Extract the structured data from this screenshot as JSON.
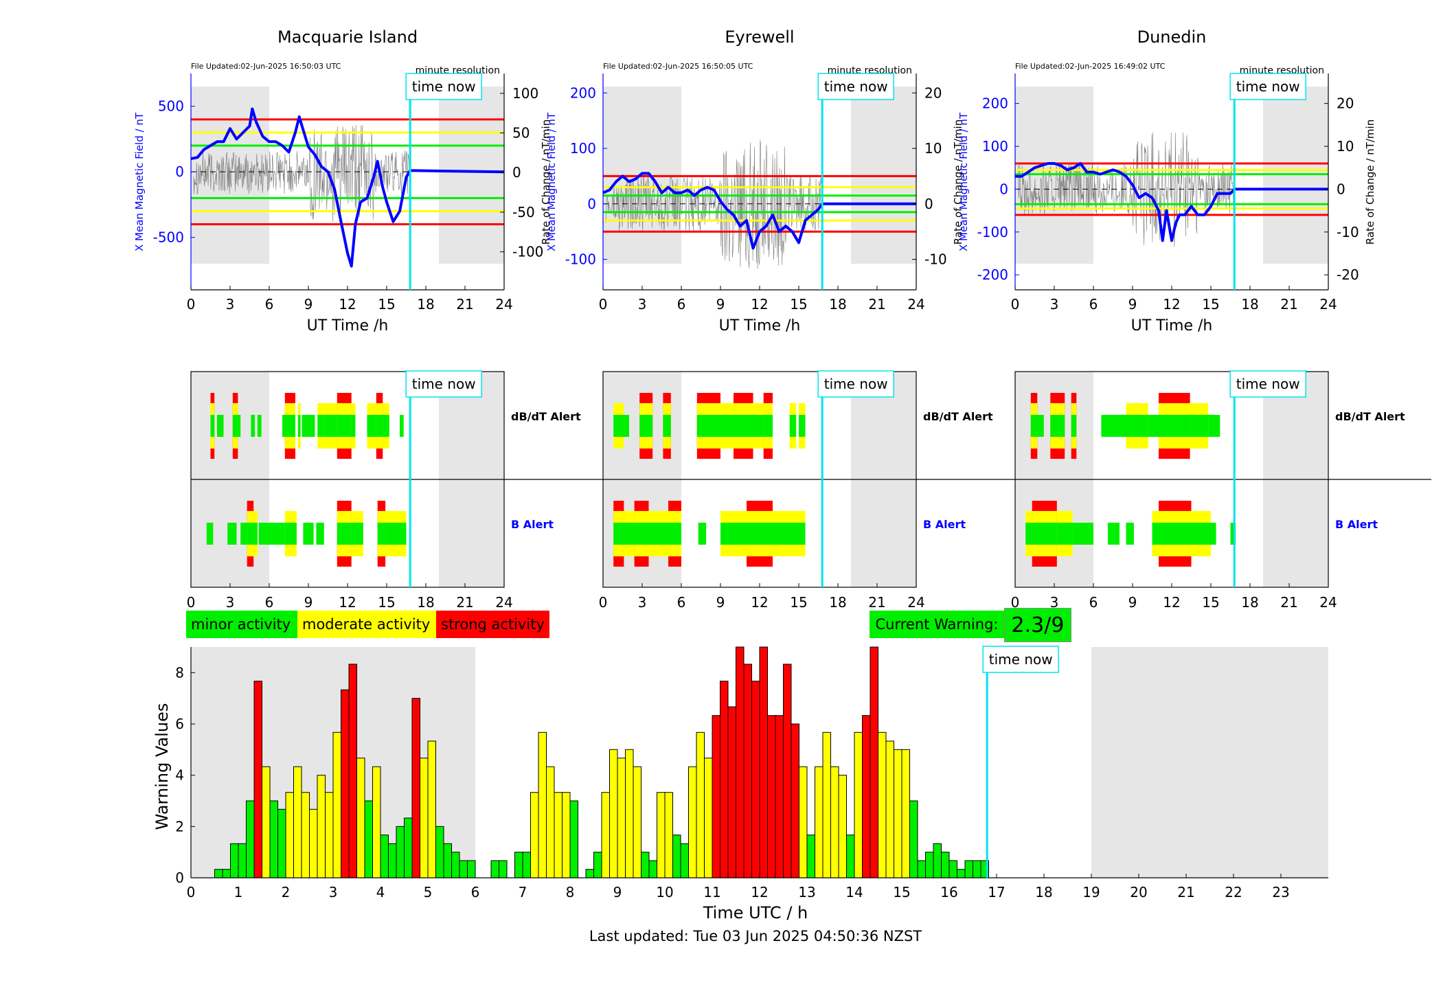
{
  "stations": [
    {
      "name": "Macquarie Island",
      "file_updated": "File Updated:02-Jun-2025 16:50:03 UTC",
      "resolution": "minute resolution",
      "left_ylabel": "X Mean Magnetic Field / nT",
      "left_ticks": [
        -500,
        0,
        500
      ],
      "left_ylim": [
        -900,
        750
      ],
      "right_ylabel": "Rate of Change / nT/min",
      "right_ticks": [
        -100,
        -50,
        0,
        50,
        100
      ],
      "right_ylim": [
        -148,
        125
      ],
      "thresholds_left": {
        "green": 200,
        "yellow": 300,
        "red": 400
      },
      "field_trace": [
        [
          0,
          100
        ],
        [
          0.5,
          110
        ],
        [
          1,
          170
        ],
        [
          1.5,
          200
        ],
        [
          2,
          230
        ],
        [
          2.5,
          230
        ],
        [
          3,
          330
        ],
        [
          3.5,
          250
        ],
        [
          4,
          300
        ],
        [
          4.5,
          350
        ],
        [
          4.7,
          480
        ],
        [
          5,
          380
        ],
        [
          5.5,
          270
        ],
        [
          6,
          230
        ],
        [
          6.5,
          230
        ],
        [
          7,
          200
        ],
        [
          7.5,
          150
        ],
        [
          8,
          300
        ],
        [
          8.3,
          420
        ],
        [
          8.6,
          320
        ],
        [
          9,
          190
        ],
        [
          9.5,
          130
        ],
        [
          10,
          40
        ],
        [
          10.5,
          0
        ],
        [
          11,
          -130
        ],
        [
          11.5,
          -380
        ],
        [
          12,
          -620
        ],
        [
          12.3,
          -720
        ],
        [
          12.6,
          -400
        ],
        [
          13,
          -230
        ],
        [
          13.5,
          -200
        ],
        [
          14,
          -40
        ],
        [
          14.3,
          80
        ],
        [
          14.7,
          -120
        ],
        [
          15,
          -230
        ],
        [
          15.5,
          -380
        ],
        [
          16,
          -300
        ],
        [
          16.5,
          -40
        ],
        [
          16.8,
          10
        ],
        [
          24,
          0
        ]
      ],
      "dbdt_bars": [
        [
          1.5,
          1.8,
          3
        ],
        [
          2.0,
          2.5,
          1
        ],
        [
          3.2,
          3.6,
          3
        ],
        [
          3.6,
          3.8,
          1
        ],
        [
          4.6,
          4.9,
          1
        ],
        [
          5.1,
          5.4,
          1
        ],
        [
          7.0,
          7.2,
          1
        ],
        [
          7.2,
          8.0,
          3
        ],
        [
          8.2,
          8.4,
          2
        ],
        [
          8.5,
          9.5,
          1
        ],
        [
          9.7,
          10.2,
          2
        ],
        [
          10.2,
          11.2,
          2
        ],
        [
          11.2,
          12.3,
          3
        ],
        [
          12.3,
          12.6,
          2
        ],
        [
          13.5,
          14.2,
          2
        ],
        [
          14.2,
          14.7,
          3
        ],
        [
          14.7,
          15.2,
          2
        ],
        [
          16.0,
          16.3,
          1
        ]
      ],
      "b_bars": [
        [
          1.2,
          1.7,
          1
        ],
        [
          2.8,
          3.5,
          1
        ],
        [
          3.8,
          4.3,
          1
        ],
        [
          4.3,
          4.8,
          3
        ],
        [
          4.8,
          5.1,
          2
        ],
        [
          5.2,
          7.0,
          1
        ],
        [
          7.0,
          7.2,
          1
        ],
        [
          7.2,
          8.1,
          2
        ],
        [
          8.6,
          9.4,
          1
        ],
        [
          9.6,
          10.2,
          1
        ],
        [
          11.2,
          12.3,
          3
        ],
        [
          12.3,
          13.2,
          2
        ],
        [
          14.3,
          14.9,
          3
        ],
        [
          14.9,
          16.5,
          2
        ]
      ]
    },
    {
      "name": "Eyrewell",
      "file_updated": "File Updated:02-Jun-2025 16:50:05 UTC",
      "resolution": "minute resolution",
      "left_ylabel": "X Mean Magnetic Field / nT",
      "left_ticks": [
        -100,
        0,
        100,
        200
      ],
      "left_ylim": [
        -155,
        235
      ],
      "right_ylabel": "Rate of Change / nT/min",
      "right_ticks": [
        -10,
        0,
        10,
        20
      ],
      "right_ylim": [
        -15.5,
        23.5
      ],
      "thresholds_left": {
        "green": 15,
        "yellow": 30,
        "red": 50
      },
      "field_trace": [
        [
          0,
          20
        ],
        [
          0.5,
          25
        ],
        [
          1,
          40
        ],
        [
          1.5,
          50
        ],
        [
          2,
          40
        ],
        [
          2.5,
          45
        ],
        [
          3,
          55
        ],
        [
          3.5,
          55
        ],
        [
          4,
          40
        ],
        [
          4.5,
          20
        ],
        [
          5,
          30
        ],
        [
          5.5,
          20
        ],
        [
          6,
          20
        ],
        [
          6.5,
          25
        ],
        [
          7,
          15
        ],
        [
          7.5,
          25
        ],
        [
          8,
          30
        ],
        [
          8.5,
          25
        ],
        [
          9,
          5
        ],
        [
          9.5,
          -10
        ],
        [
          10,
          -20
        ],
        [
          10.5,
          -40
        ],
        [
          11,
          -30
        ],
        [
          11.5,
          -80
        ],
        [
          12,
          -50
        ],
        [
          12.5,
          -40
        ],
        [
          13,
          -20
        ],
        [
          13.5,
          -50
        ],
        [
          14,
          -40
        ],
        [
          14.5,
          -50
        ],
        [
          15,
          -70
        ],
        [
          15.5,
          -30
        ],
        [
          16,
          -20
        ],
        [
          16.5,
          -10
        ],
        [
          16.8,
          0
        ],
        [
          24,
          0
        ]
      ],
      "dbdt_bars": [
        [
          0.8,
          1.6,
          2
        ],
        [
          1.6,
          2.0,
          1
        ],
        [
          2.8,
          3.8,
          3
        ],
        [
          4.6,
          5.2,
          3
        ],
        [
          7.2,
          9.0,
          3
        ],
        [
          9.0,
          10.0,
          2
        ],
        [
          10.0,
          11.5,
          3
        ],
        [
          11.5,
          12.3,
          2
        ],
        [
          12.3,
          13.0,
          3
        ],
        [
          14.3,
          14.8,
          2
        ],
        [
          15.0,
          15.5,
          2
        ]
      ],
      "b_bars": [
        [
          0.8,
          1.6,
          3
        ],
        [
          1.6,
          2.4,
          2
        ],
        [
          2.4,
          3.5,
          3
        ],
        [
          3.5,
          5.0,
          2
        ],
        [
          5.0,
          6.0,
          3
        ],
        [
          7.3,
          7.9,
          1
        ],
        [
          9.0,
          10.0,
          2
        ],
        [
          10.0,
          11.0,
          2
        ],
        [
          11.0,
          12.0,
          3
        ],
        [
          12.0,
          13.0,
          3
        ],
        [
          13.0,
          14.5,
          2
        ],
        [
          14.5,
          15.5,
          2
        ]
      ]
    },
    {
      "name": "Dunedin",
      "file_updated": "File Updated:02-Jun-2025 16:49:02 UTC",
      "resolution": "minute resolution",
      "left_ylabel": "X Mean Magnetic Field / nT",
      "left_ticks": [
        -200,
        -100,
        0,
        100,
        200
      ],
      "left_ylim": [
        -235,
        270
      ],
      "right_ylabel": "Rate of Change / nT/min",
      "right_ticks": [
        -20,
        -10,
        0,
        10,
        20
      ],
      "right_ylim": [
        -23.5,
        27
      ],
      "thresholds_left": {
        "green": 35,
        "yellow": 45,
        "red": 60
      },
      "field_trace": [
        [
          0,
          30
        ],
        [
          0.5,
          30
        ],
        [
          1,
          40
        ],
        [
          1.5,
          50
        ],
        [
          2,
          55
        ],
        [
          2.5,
          60
        ],
        [
          3,
          60
        ],
        [
          3.5,
          55
        ],
        [
          4,
          45
        ],
        [
          4.5,
          50
        ],
        [
          5,
          60
        ],
        [
          5.5,
          40
        ],
        [
          6,
          40
        ],
        [
          6.5,
          35
        ],
        [
          7,
          40
        ],
        [
          7.5,
          45
        ],
        [
          8,
          40
        ],
        [
          8.5,
          30
        ],
        [
          9,
          10
        ],
        [
          9.5,
          -20
        ],
        [
          10,
          -10
        ],
        [
          10.5,
          -20
        ],
        [
          11,
          -50
        ],
        [
          11.3,
          -120
        ],
        [
          11.6,
          -50
        ],
        [
          12,
          -120
        ],
        [
          12.3,
          -80
        ],
        [
          12.6,
          -60
        ],
        [
          13,
          -60
        ],
        [
          13.5,
          -40
        ],
        [
          14,
          -60
        ],
        [
          14.5,
          -60
        ],
        [
          15,
          -40
        ],
        [
          15.5,
          -10
        ],
        [
          16,
          -10
        ],
        [
          16.5,
          -10
        ],
        [
          16.8,
          0
        ],
        [
          24,
          0
        ]
      ],
      "dbdt_bars": [
        [
          1.2,
          1.7,
          3
        ],
        [
          1.7,
          2.2,
          1
        ],
        [
          2.7,
          3.8,
          3
        ],
        [
          4.3,
          4.7,
          3
        ],
        [
          6.6,
          8.5,
          1
        ],
        [
          8.5,
          9.5,
          2
        ],
        [
          9.5,
          10.2,
          2
        ],
        [
          10.2,
          11.0,
          1
        ],
        [
          11.0,
          13.4,
          3
        ],
        [
          13.4,
          14.8,
          2
        ],
        [
          14.8,
          15.7,
          1
        ]
      ],
      "b_bars": [
        [
          0.8,
          1.3,
          2
        ],
        [
          1.3,
          3.2,
          3
        ],
        [
          3.2,
          4.4,
          2
        ],
        [
          4.4,
          6.0,
          1
        ],
        [
          7.1,
          7.6,
          1
        ],
        [
          7.6,
          8.0,
          1
        ],
        [
          8.5,
          9.1,
          1
        ],
        [
          10.5,
          11.0,
          2
        ],
        [
          11.0,
          13.5,
          3
        ],
        [
          13.5,
          15.0,
          2
        ],
        [
          15.0,
          15.4,
          1
        ],
        [
          16.5,
          16.9,
          1
        ]
      ]
    }
  ],
  "time_now_label": "time now",
  "time_now_hours": 16.8,
  "night_shading": [
    [
      0,
      6
    ],
    [
      19,
      24
    ]
  ],
  "x_axis_label": "UT Time /h",
  "x_ticks": [
    0,
    3,
    6,
    9,
    12,
    15,
    18,
    21,
    24
  ],
  "alert_labels": {
    "dbdt": "dB/dT Alert",
    "b": "B Alert"
  },
  "legend": {
    "minor": "minor activity",
    "moderate": "moderate activity",
    "strong": "strong activity"
  },
  "current_warning": {
    "label": "Current Warning:",
    "value": "2.3/9"
  },
  "colors": {
    "minor": "#00ee00",
    "moderate": "#ffff00",
    "strong": "#ff0000",
    "field": "#0000ff",
    "time_now": "#00e5ee",
    "shade": "#e6e6e6"
  },
  "chart_data": {
    "type": "bar",
    "xlabel": "Time UTC / h",
    "ylabel": "Warning Values",
    "xlim": [
      0,
      24
    ],
    "ylim": [
      0,
      9
    ],
    "x_ticks": [
      0,
      1,
      2,
      3,
      4,
      5,
      6,
      7,
      8,
      9,
      10,
      11,
      12,
      13,
      14,
      15,
      16,
      17,
      18,
      19,
      20,
      21,
      22,
      23
    ],
    "y_ticks": [
      0,
      2,
      4,
      6,
      8
    ],
    "bin_width_h": 0.1667,
    "x": [
      0.5,
      0.667,
      0.833,
      1.0,
      1.167,
      1.333,
      1.5,
      1.667,
      1.833,
      2.0,
      2.167,
      2.333,
      2.5,
      2.667,
      2.833,
      3.0,
      3.167,
      3.333,
      3.5,
      3.667,
      3.833,
      4.0,
      4.167,
      4.333,
      4.5,
      4.667,
      4.833,
      5.0,
      5.167,
      5.333,
      5.5,
      5.667,
      5.833,
      6.333,
      6.5,
      6.833,
      7.0,
      7.167,
      7.333,
      7.5,
      7.667,
      7.833,
      8.0,
      8.333,
      8.5,
      8.667,
      8.833,
      9.0,
      9.167,
      9.333,
      9.5,
      9.667,
      9.833,
      10.0,
      10.167,
      10.333,
      10.5,
      10.667,
      10.833,
      11.0,
      11.167,
      11.333,
      11.5,
      11.667,
      11.833,
      12.0,
      12.167,
      12.333,
      12.5,
      12.667,
      12.833,
      13.0,
      13.167,
      13.333,
      13.5,
      13.667,
      13.833,
      14.0,
      14.167,
      14.333,
      14.5,
      14.667,
      14.833,
      15.0,
      15.167,
      15.333,
      15.5,
      15.667,
      15.833,
      16.0,
      16.167,
      16.333,
      16.5,
      16.667
    ],
    "values": [
      0.33,
      0.33,
      1.33,
      1.33,
      3.0,
      7.67,
      4.33,
      3.0,
      2.67,
      3.33,
      4.33,
      3.33,
      2.67,
      4.0,
      3.33,
      5.67,
      7.33,
      8.33,
      4.67,
      3.0,
      4.33,
      1.67,
      1.33,
      2.0,
      2.33,
      7.0,
      4.67,
      5.33,
      2.0,
      1.33,
      1.0,
      0.67,
      0.67,
      0.67,
      0.67,
      1.0,
      1.0,
      3.33,
      5.67,
      4.33,
      3.33,
      3.33,
      3.0,
      0.33,
      1.0,
      3.33,
      5.0,
      4.67,
      5.0,
      4.33,
      1.0,
      0.67,
      3.33,
      3.33,
      1.67,
      1.33,
      4.33,
      5.67,
      4.67,
      6.33,
      7.67,
      6.67,
      9.0,
      8.33,
      7.67,
      9.0,
      6.33,
      6.33,
      8.33,
      6.0,
      4.33,
      1.67,
      4.33,
      5.67,
      4.33,
      4.0,
      1.67,
      5.67,
      6.33,
      9.0,
      5.67,
      5.33,
      5.0,
      5.0,
      3.0,
      0.67,
      1.0,
      1.33,
      1.0,
      0.67,
      0.33,
      0.67,
      0.67,
      0.67
    ],
    "levels": [
      1,
      1,
      1,
      1,
      1,
      3,
      2,
      1,
      1,
      2,
      2,
      2,
      2,
      2,
      2,
      2,
      3,
      3,
      2,
      1,
      2,
      1,
      1,
      1,
      1,
      3,
      2,
      2,
      1,
      1,
      1,
      1,
      1,
      1,
      1,
      1,
      1,
      2,
      2,
      2,
      2,
      2,
      1,
      1,
      1,
      2,
      2,
      2,
      2,
      2,
      1,
      1,
      2,
      2,
      1,
      1,
      2,
      2,
      2,
      3,
      3,
      3,
      3,
      3,
      3,
      3,
      3,
      3,
      3,
      3,
      2,
      1,
      2,
      2,
      2,
      2,
      1,
      2,
      3,
      3,
      2,
      2,
      2,
      2,
      1,
      1,
      1,
      1,
      1,
      1,
      1,
      1,
      1,
      1
    ]
  },
  "footer": "Last updated: Tue 03 Jun 2025 04:50:36 NZST"
}
